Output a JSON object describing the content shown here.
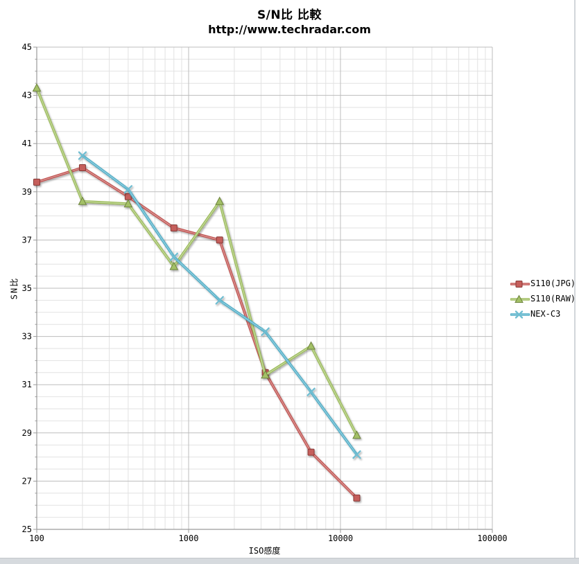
{
  "chart_data": {
    "type": "line",
    "title": "S/N比 比較",
    "subtitle": "http://www.techradar.com",
    "xlabel": "ISO感度",
    "ylabel": "SN比",
    "x_scale": "log",
    "xlim": [
      100,
      100000
    ],
    "x_ticks": [
      100,
      1000,
      10000,
      100000
    ],
    "ylim": [
      25,
      45
    ],
    "y_tick_step": 2,
    "y_minor_step": 0.5,
    "grid": true,
    "legend_position": "right",
    "series": [
      {
        "name": "S110(JPG)",
        "color": "#C0504D",
        "marker": "square",
        "x": [
          100,
          200,
          400,
          800,
          1600,
          3200,
          6400,
          12800
        ],
        "values": [
          39.4,
          40.0,
          38.8,
          37.5,
          37.0,
          31.5,
          28.2,
          26.3
        ]
      },
      {
        "name": "S110(RAW)",
        "color": "#9BBB59",
        "marker": "triangle",
        "x": [
          100,
          200,
          400,
          800,
          1600,
          3200,
          6400,
          12800
        ],
        "values": [
          43.3,
          38.6,
          38.5,
          35.9,
          38.6,
          31.4,
          32.6,
          28.9
        ]
      },
      {
        "name": "NEX-C3",
        "color": "#4BACC6",
        "marker": "x",
        "x": [
          200,
          400,
          800,
          1600,
          3200,
          6400,
          12800
        ],
        "values": [
          40.5,
          39.1,
          36.3,
          34.5,
          33.2,
          30.7,
          28.1
        ]
      }
    ]
  }
}
